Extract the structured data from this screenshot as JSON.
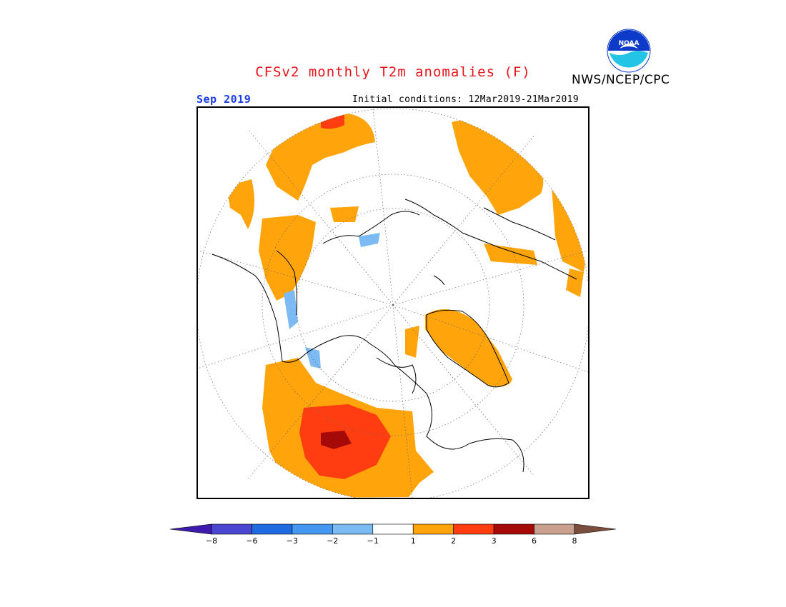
{
  "header": {
    "title": "CFSv2 monthly T2m anomalies (F)",
    "agency": "NWS/NCEP/CPC",
    "logo_text": "NOAA",
    "valid_month": "Sep 2019",
    "initial_conditions": "Initial conditions: 12Mar2019-21Mar2019"
  },
  "map": {
    "projection": "north polar stereographic",
    "field": "2m temperature anomaly",
    "units": "F"
  },
  "legend": {
    "bins": [
      {
        "color": "#3f1ab0"
      },
      {
        "color": "#4a46cf"
      },
      {
        "color": "#1f6ae0"
      },
      {
        "color": "#4496ee"
      },
      {
        "color": "#7cbaf3"
      },
      {
        "color": "#ffffff"
      },
      {
        "color": "#ffa40a"
      },
      {
        "color": "#ff3d10"
      },
      {
        "color": "#a60a08"
      },
      {
        "color": "#c9a08e"
      },
      {
        "color": "#7a4e3c"
      }
    ],
    "tick_labels": [
      "-8",
      "-6",
      "-3",
      "-2",
      "-1",
      "1",
      "2",
      "3",
      "6",
      "8"
    ]
  },
  "colors": {
    "title": "#e8141b",
    "valid_month": "#1c3ee0",
    "warm_light": "#ffa40a",
    "warm_mid": "#ff3d10",
    "warm_dark": "#a60a08",
    "cool": "#7cbaf3"
  }
}
